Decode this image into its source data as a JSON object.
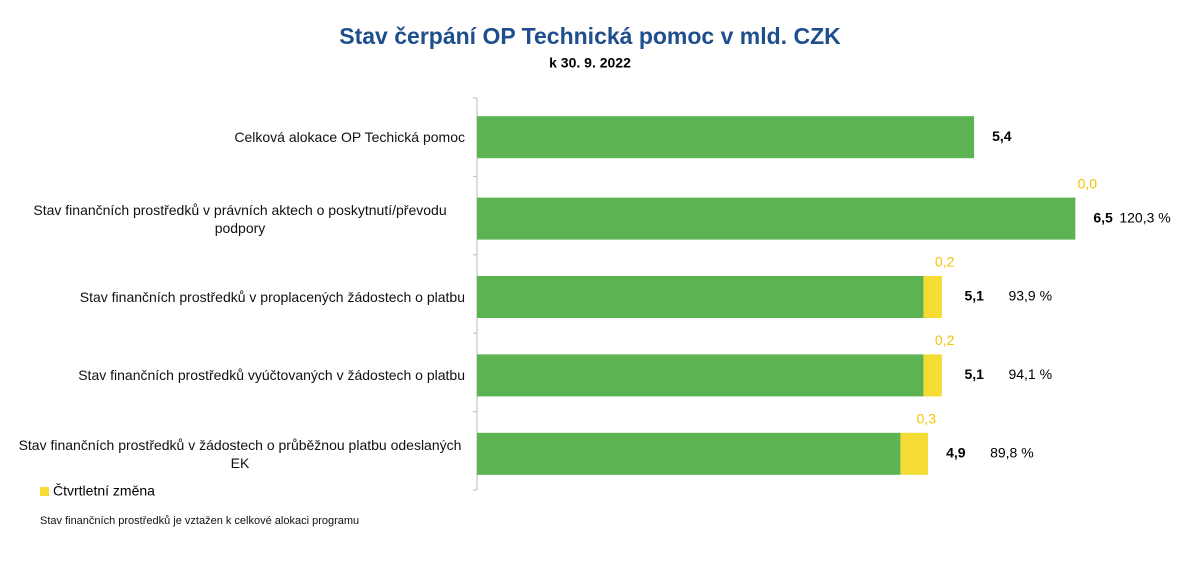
{
  "chart_data": {
    "type": "bar",
    "orientation": "horizontal",
    "stacked": true,
    "title": "Stav čerpání OP Technická pomoc v mld. CZK",
    "subtitle": "k 30. 9. 2022",
    "categories": [
      "Celková alokace OP Techická pomoc",
      "Stav finančních prostředků v právních aktech o poskytnutí/převodu podpory",
      "Stav finančních prostředků v proplacených žádostech o platbu",
      "Stav finančních prostředků vyúčtovaných v žádostech o platbu",
      "Stav finančních prostředků v žádostech o průběžnou platbu odeslaných EK"
    ],
    "series": [
      {
        "color": "#5cb352",
        "values": [
          5.4,
          6.5,
          4.85,
          4.85,
          4.6
        ]
      },
      {
        "name": "Čtvrtletní změna",
        "color": "#f5dc34",
        "values": [
          null,
          0.0,
          0.2,
          0.2,
          0.3
        ],
        "value_labels": [
          null,
          "0,0",
          "0,2",
          "0,2",
          "0,3"
        ]
      }
    ],
    "totals": [
      5.4,
      6.5,
      5.1,
      5.1,
      4.9
    ],
    "total_labels": [
      "5,4",
      "6,5",
      "5,1",
      "5,1",
      "4,9"
    ],
    "shares": [
      null,
      120.3,
      93.9,
      94.1,
      89.8
    ],
    "share_labels": [
      null,
      "120,3 %",
      "93,9 %",
      "94,1 %",
      "89,8 %"
    ],
    "xlim": [
      0,
      7.3
    ],
    "footnote": "Stav finančních prostředků je vztažen k celkové alokaci programu"
  }
}
